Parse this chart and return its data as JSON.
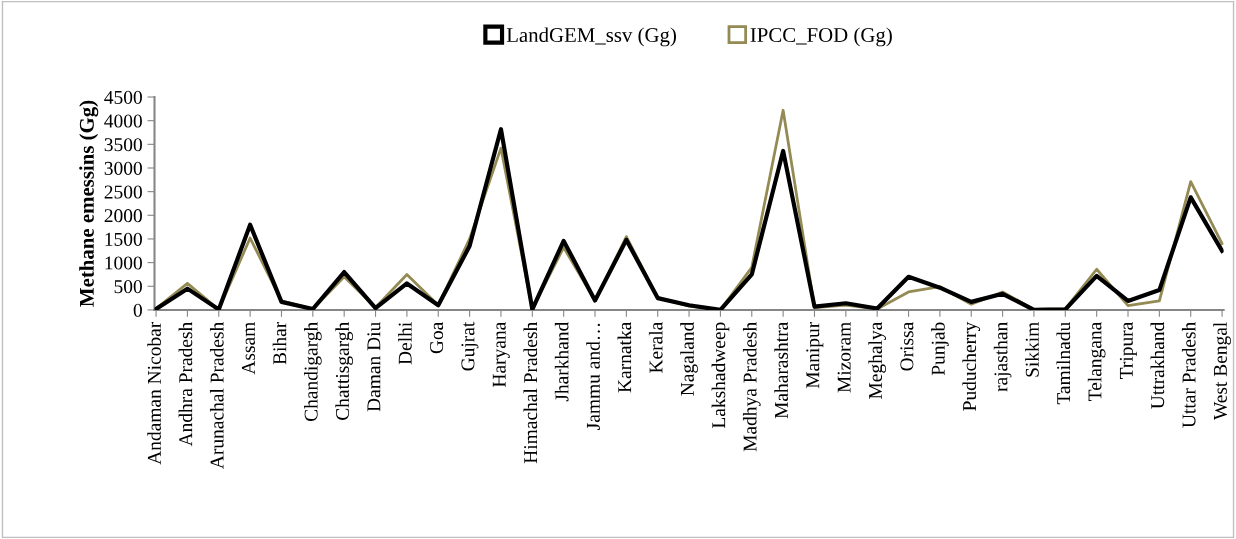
{
  "chart_data": {
    "type": "line",
    "ylabel": "Methane emessins (Gg)",
    "categories": [
      "Andaman Nicobar",
      "Andhra Pradesh",
      "Arunachal Pradesh",
      "Assam",
      "Bihar",
      "Chandigargh",
      "Chattisgargh",
      "Daman Diu",
      "Delhi",
      "Goa",
      "Gujrat",
      "Haryana",
      "Himachal Pradesh",
      "Jharkhand",
      "Jammu and…",
      "Karnatka",
      "Kerala",
      "Nagaland",
      "Lakshadweep",
      "Madhya Pradesh",
      "Maharashtra",
      "Manipur",
      "Mizoram",
      "Meghalya",
      "Orissa",
      "Punjab",
      "Puducherry",
      "rajasthan",
      "Sikkim",
      "Tamilnadu",
      "Telangana",
      "Tripura",
      "Uttrakhand",
      "Uttar Pradesh",
      "West Bengal"
    ],
    "series": [
      {
        "name": "LandGEM_ssv (Gg)",
        "color": "#000000",
        "values": [
          20,
          450,
          10,
          1800,
          170,
          20,
          800,
          40,
          560,
          100,
          1350,
          3820,
          10,
          1460,
          200,
          1480,
          250,
          100,
          0,
          750,
          3360,
          70,
          140,
          30,
          700,
          470,
          170,
          340,
          0,
          10,
          720,
          190,
          420,
          2380,
          1250
        ]
      },
      {
        "name": "IPCC_FOD (Gg)",
        "color": "#948a54",
        "values": [
          30,
          560,
          10,
          1520,
          190,
          20,
          700,
          50,
          750,
          100,
          1500,
          3420,
          20,
          1320,
          200,
          1550,
          260,
          80,
          0,
          900,
          4220,
          50,
          100,
          20,
          380,
          490,
          120,
          380,
          10,
          20,
          860,
          90,
          190,
          2710,
          1400
        ]
      }
    ],
    "ylim": [
      0,
      4500
    ],
    "yticks": [
      0,
      500,
      1000,
      1500,
      2000,
      2500,
      3000,
      3500,
      4000,
      4500
    ],
    "grid": false,
    "legend": "top",
    "marker": "none",
    "line_style": "solid"
  }
}
